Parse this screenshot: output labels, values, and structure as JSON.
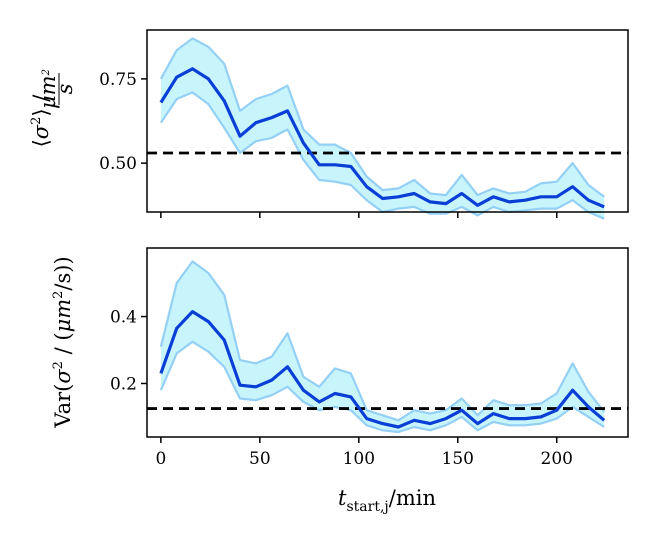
{
  "chart_data": [
    {
      "type": "line",
      "panel": "top",
      "ylabel": "⟨σ²⟩ / μm²/s",
      "ylabel_parts": {
        "open": "⟨",
        "sigma": "σ",
        "sq": "2",
        "close": "⟩ /",
        "num": "μm",
        "num_sq": "2",
        "den": "s"
      },
      "ylim": [
        0.355,
        0.895
      ],
      "xlim": [
        -7,
        236
      ],
      "yticks": [
        0.5,
        0.75
      ],
      "ytick_labels": [
        "0.50",
        "0.75"
      ],
      "hline": 0.53,
      "x": [
        0,
        8,
        16,
        24,
        32,
        40,
        48,
        56,
        64,
        72,
        80,
        88,
        96,
        104,
        112,
        120,
        128,
        136,
        144,
        152,
        160,
        168,
        176,
        184,
        192,
        200,
        208,
        216,
        224
      ],
      "mean": [
        0.68,
        0.755,
        0.78,
        0.75,
        0.685,
        0.58,
        0.62,
        0.635,
        0.655,
        0.56,
        0.495,
        0.495,
        0.49,
        0.43,
        0.395,
        0.4,
        0.41,
        0.385,
        0.38,
        0.41,
        0.375,
        0.4,
        0.385,
        0.39,
        0.4,
        0.4,
        0.43,
        0.39,
        0.37
      ],
      "upper": [
        0.75,
        0.835,
        0.87,
        0.845,
        0.795,
        0.655,
        0.69,
        0.705,
        0.73,
        0.6,
        0.555,
        0.555,
        0.53,
        0.46,
        0.42,
        0.425,
        0.45,
        0.41,
        0.405,
        0.465,
        0.405,
        0.425,
        0.41,
        0.415,
        0.44,
        0.445,
        0.5,
        0.435,
        0.4
      ],
      "lower": [
        0.62,
        0.69,
        0.71,
        0.675,
        0.605,
        0.53,
        0.565,
        0.575,
        0.6,
        0.51,
        0.45,
        0.445,
        0.435,
        0.39,
        0.355,
        0.365,
        0.37,
        0.35,
        0.35,
        0.37,
        0.345,
        0.37,
        0.355,
        0.36,
        0.365,
        0.365,
        0.39,
        0.355,
        0.335
      ]
    },
    {
      "type": "line",
      "panel": "bottom",
      "ylabel": "Var(σ² / (μm²/s))",
      "ylabel_parts": {
        "pre": "Var(",
        "sigma": "σ",
        "sq": "2",
        "mid": " / (",
        "mu": "μm",
        "mu_sq": "2",
        "post": "/s))"
      },
      "xlabel": "t_start,j/min",
      "xlabel_parts": {
        "t": "t",
        "sub": "start,j",
        "post": "/min"
      },
      "ylim": [
        0.04,
        0.605
      ],
      "xlim": [
        -7,
        236
      ],
      "yticks": [
        0.2,
        0.4
      ],
      "ytick_labels": [
        "0.2",
        "0.4"
      ],
      "xticks": [
        0,
        50,
        100,
        150,
        200
      ],
      "xtick_labels": [
        "0",
        "50",
        "100",
        "150",
        "200"
      ],
      "hline": 0.125,
      "x": [
        0,
        8,
        16,
        24,
        32,
        40,
        48,
        56,
        64,
        72,
        80,
        88,
        96,
        104,
        112,
        120,
        128,
        136,
        144,
        152,
        160,
        168,
        176,
        184,
        192,
        200,
        208,
        216,
        224
      ],
      "mean": [
        0.23,
        0.365,
        0.415,
        0.385,
        0.33,
        0.195,
        0.19,
        0.21,
        0.25,
        0.18,
        0.145,
        0.17,
        0.16,
        0.095,
        0.08,
        0.07,
        0.09,
        0.08,
        0.095,
        0.12,
        0.08,
        0.11,
        0.095,
        0.095,
        0.1,
        0.12,
        0.18,
        0.13,
        0.09
      ],
      "upper": [
        0.31,
        0.5,
        0.565,
        0.53,
        0.465,
        0.27,
        0.26,
        0.28,
        0.35,
        0.22,
        0.19,
        0.245,
        0.23,
        0.12,
        0.105,
        0.09,
        0.12,
        0.11,
        0.12,
        0.155,
        0.105,
        0.15,
        0.135,
        0.135,
        0.14,
        0.17,
        0.26,
        0.175,
        0.115
      ],
      "lower": [
        0.18,
        0.29,
        0.325,
        0.295,
        0.25,
        0.155,
        0.15,
        0.165,
        0.19,
        0.145,
        0.12,
        0.13,
        0.12,
        0.075,
        0.06,
        0.055,
        0.07,
        0.06,
        0.075,
        0.1,
        0.06,
        0.085,
        0.075,
        0.075,
        0.08,
        0.095,
        0.13,
        0.1,
        0.07
      ]
    }
  ]
}
